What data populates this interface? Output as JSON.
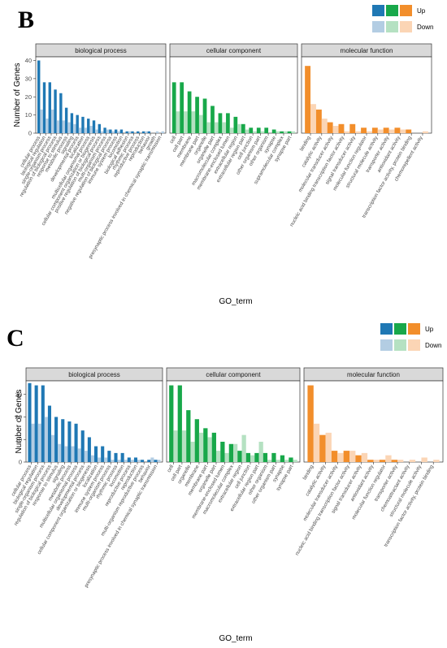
{
  "chart_data": [
    {
      "type": "bar",
      "panel_label": "B",
      "ylabel": "Number of Genes",
      "xlabel": "GO_term",
      "ylim": [
        0,
        42
      ],
      "yticks": [
        0,
        10,
        20,
        30,
        40
      ],
      "legend": {
        "up": "Up",
        "down": "Down",
        "placement": "top-right"
      },
      "facets": [
        {
          "name": "biological process",
          "color_up": "#1f78b4",
          "color_down": "#b3cde3",
          "categories": [
            "cellular process",
            "biological regulation",
            "single-organism process",
            "regulation of biological process",
            "response to stimulus",
            "metabolic process",
            "signaling",
            "developmental process",
            "localization",
            "multicellular organismal process",
            "cellular component organization or biogenesis",
            "positive regulation of biological process",
            "multi-organism process",
            "negative regulation of biological process",
            "immune system process",
            "locomotion",
            "biological adhesion",
            "rhythmic process",
            "reproductive process",
            "reproduction",
            "behavior",
            "growth",
            "presynaptic process involved in chemical synaptic transmission"
          ],
          "up": [
            40,
            28,
            28,
            24,
            22,
            14,
            11,
            10,
            9,
            8,
            7,
            5,
            3,
            2,
            2,
            2,
            1,
            1,
            1,
            1,
            1,
            0,
            0
          ],
          "down": [
            13,
            8,
            13,
            7,
            7,
            6,
            5,
            3,
            3,
            4,
            2,
            1,
            2,
            1,
            1,
            0,
            1,
            0,
            0,
            1,
            0,
            1,
            1
          ]
        },
        {
          "name": "cellular component",
          "color_up": "#18a84a",
          "color_down": "#b5e1c2",
          "categories": [
            "cell",
            "cell part",
            "membrane",
            "membrane part",
            "organelle",
            "organelle part",
            "macromolecular complex",
            "membrane-enclosed lumen",
            "extracellular region",
            "extracellular region part",
            "cell junction",
            "other organism part",
            "other organism",
            "synapse",
            "supramolecular complex",
            "synapse part"
          ],
          "up": [
            28,
            28,
            23,
            20,
            19,
            15,
            11,
            11,
            9,
            5,
            3,
            3,
            3,
            2,
            1,
            1
          ],
          "down": [
            12,
            12,
            12,
            10,
            6,
            6,
            6,
            3,
            5,
            2,
            1,
            1,
            0,
            1,
            1,
            1
          ]
        },
        {
          "name": "molecular function",
          "color_up": "#f28e2b",
          "color_down": "#fbd5b5",
          "categories": [
            "binding",
            "catalytic activity",
            "molecular transducer activity",
            "nucleic acid binding transcription factor activity",
            "signal transducer activity",
            "molecular function regulator",
            "structural molecule activity",
            "transporter activity",
            "antioxidant activity",
            "transcription factor activity, protein binding",
            "chemorepellent activity"
          ],
          "up": [
            37,
            13,
            6,
            5,
            5,
            3,
            3,
            3,
            3,
            2,
            0
          ],
          "down": [
            16,
            8,
            4,
            1,
            1,
            1,
            2,
            2,
            2,
            0,
            1
          ]
        }
      ]
    },
    {
      "type": "bar",
      "panel_label": "C",
      "ylabel": "Number of Genes",
      "xlabel": "GO_term",
      "ylim": [
        0,
        36
      ],
      "yticks": [
        0,
        10,
        20,
        30
      ],
      "legend": {
        "up": "Up",
        "down": "Down",
        "placement": "top-right"
      },
      "facets": [
        {
          "name": "biological process",
          "color_up": "#1f78b4",
          "color_down": "#b3cde3",
          "categories": [
            "cellular process",
            "biological regulation",
            "single-organism process",
            "regulation of biological process",
            "response to stimulus",
            "signaling",
            "metabolic process",
            "multicellular organismal process",
            "developmental process",
            "cellular component organization or biogenesis",
            "localization",
            "immune system process",
            "multi-organism process",
            "rhythmic process",
            "locomotion",
            "reproductive process",
            "reproduction",
            "multi-organism reproductive process",
            "behavior",
            "presynaptic process involved in chemical synaptic transmission"
          ],
          "up": [
            35,
            34,
            34,
            25,
            20,
            19,
            18,
            17,
            14,
            11,
            7,
            7,
            5,
            4,
            4,
            2,
            2,
            1,
            1,
            1
          ],
          "down": [
            17,
            17,
            20,
            12,
            8,
            7,
            7,
            6,
            5,
            3,
            2,
            2,
            1,
            1,
            1,
            1,
            1,
            0,
            2,
            1
          ]
        },
        {
          "name": "cellular component",
          "color_up": "#18a84a",
          "color_down": "#b5e1c2",
          "categories": [
            "cell",
            "cell part",
            "organelle",
            "membrane",
            "membrane part",
            "organelle part",
            "membrane-enclosed lumen",
            "macromolecular complex",
            "extracellular region",
            "cell junction",
            "extracellular region part",
            "other organism",
            "other organism part",
            "synapse",
            "synapse part"
          ],
          "up": [
            34,
            34,
            23,
            19,
            15,
            13,
            9,
            8,
            5,
            4,
            4,
            4,
            4,
            3,
            2
          ],
          "down": [
            14,
            14,
            9,
            13,
            11,
            5,
            4,
            8,
            12,
            3,
            9,
            1,
            1,
            1,
            1
          ]
        },
        {
          "name": "molecular function",
          "color_up": "#f28e2b",
          "color_down": "#fbd5b5",
          "categories": [
            "binding",
            "catalytic activity",
            "molecular transducer activity",
            "nucleic acid binding transcription factor activity",
            "signal transducer activity",
            "antioxidant activity",
            "molecular function regulator",
            "transporter activity",
            "chemoattractant activity",
            "structural molecule activity",
            "transcription factor activity, protein binding"
          ],
          "up": [
            34,
            12,
            5,
            5,
            3,
            1,
            1,
            1,
            0,
            0,
            0
          ],
          "down": [
            17,
            13,
            4,
            5,
            4,
            1,
            3,
            1,
            1,
            2,
            1
          ]
        }
      ]
    }
  ]
}
